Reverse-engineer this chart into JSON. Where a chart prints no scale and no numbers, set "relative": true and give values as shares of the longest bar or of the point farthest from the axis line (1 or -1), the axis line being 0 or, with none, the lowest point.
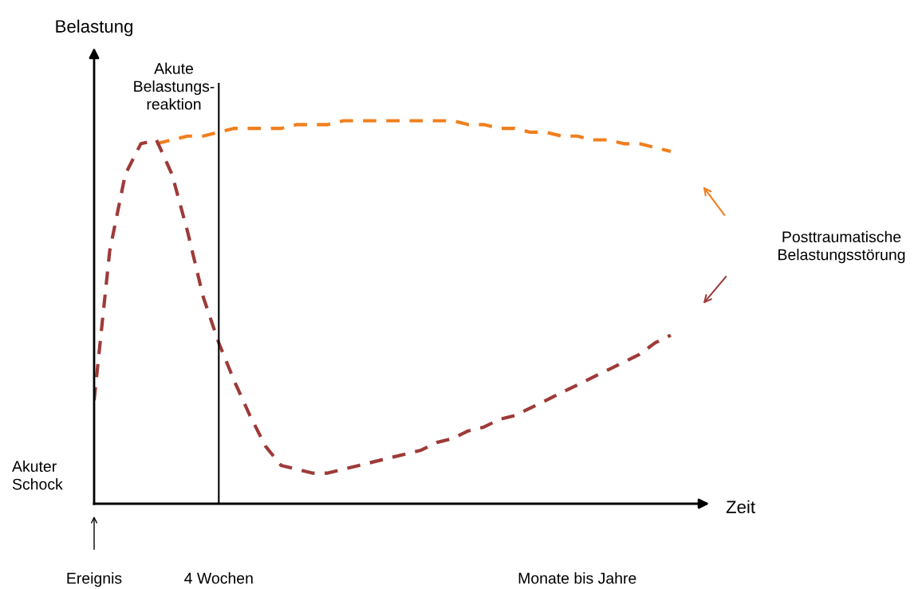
{
  "chart_data": {
    "type": "line",
    "relative": true,
    "xlabel": "Zeit",
    "ylabel": "Belastung",
    "line_style": "dashed",
    "grid": false,
    "marker": "none",
    "categories": [
      "Ereignis",
      null,
      null,
      null,
      null,
      null,
      null,
      null,
      "4 Wochen",
      null,
      null,
      null,
      null,
      null,
      null,
      null,
      null,
      null,
      null,
      null,
      null,
      null,
      null,
      null,
      null,
      null,
      null,
      null,
      null,
      null,
      null,
      "Monate bis Jahre",
      null,
      null,
      null,
      null,
      null,
      null,
      null,
      null
    ],
    "series": [
      {
        "color": "#f07f1e",
        "values": [
          null,
          null,
          null,
          null,
          0.94,
          0.95,
          0.96,
          0.96,
          0.97,
          0.98,
          0.98,
          0.98,
          0.98,
          0.99,
          0.99,
          0.99,
          1.0,
          1.0,
          1.0,
          1.0,
          1.0,
          1.0,
          1.0,
          1.0,
          0.99,
          0.99,
          0.98,
          0.98,
          0.97,
          0.97,
          0.96,
          0.96,
          0.95,
          0.95,
          0.94,
          0.94,
          0.93,
          0.92,
          null,
          null
        ]
      },
      {
        "color": "#9e3a38",
        "values": [
          0.27,
          0.66,
          0.86,
          0.94,
          0.95,
          0.86,
          0.71,
          0.54,
          0.42,
          0.32,
          0.23,
          0.15,
          0.1,
          0.09,
          0.08,
          0.08,
          0.09,
          0.1,
          0.11,
          0.12,
          0.13,
          0.14,
          0.16,
          0.17,
          0.19,
          0.2,
          0.22,
          0.23,
          0.25,
          0.27,
          0.29,
          0.31,
          0.33,
          0.35,
          0.37,
          0.39,
          0.42,
          0.44,
          null,
          null
        ]
      }
    ],
    "ref_lines": [
      {
        "axis": "x",
        "value": "4 Wochen",
        "color": "#000000",
        "line_style": "solid"
      }
    ],
    "annotations": [
      "Akute\nBelastungs-\nreaktion",
      "Akuter\nSchock",
      "Posttraumatische\nBelastungsstörung"
    ]
  }
}
